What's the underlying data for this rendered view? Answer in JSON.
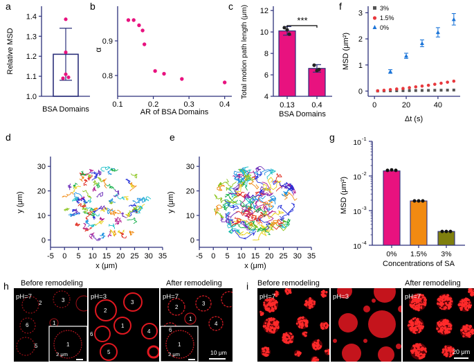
{
  "panel_letters": [
    "a",
    "b",
    "c",
    "d",
    "e",
    "f",
    "g",
    "h",
    "i"
  ],
  "colors": {
    "pink": "#e8127f",
    "axis": "#2b2f7a",
    "orange": "#f18a12",
    "olive": "#7f7f0e",
    "black": "#000000",
    "gray": "#555555",
    "red": "#e8383d",
    "blue": "#1c75d8"
  },
  "chart_data": [
    {
      "id": "a",
      "type": "bar",
      "categories": [
        "BSA Domains"
      ],
      "values": [
        1.21
      ],
      "error": [
        [
          1.08,
          1.34
        ]
      ],
      "points": [
        1.385,
        1.22,
        1.11,
        1.095,
        1.09
      ],
      "title": "",
      "xlabel": "BSA Domains",
      "ylabel": "Relative MSD",
      "ylim": [
        1.0,
        1.45
      ],
      "yticks": [
        "1.0",
        "1.1",
        "1.2",
        "1.3",
        "1.4"
      ]
    },
    {
      "id": "b",
      "type": "scatter",
      "x": [
        0.13,
        0.145,
        0.16,
        0.17,
        0.175,
        0.205,
        0.23,
        0.28,
        0.4
      ],
      "y": [
        0.96,
        0.96,
        0.945,
        0.93,
        0.89,
        0.813,
        0.805,
        0.79,
        0.78
      ],
      "title": "",
      "xlabel": "AR of BSA Domains",
      "ylabel": "α",
      "xlim": [
        0.1,
        0.42
      ],
      "ylim": [
        0.74,
        1.0
      ],
      "xticks": [
        "0.1",
        "0.2",
        "0.3",
        "0.4"
      ],
      "yticks": [
        "0.8",
        "0.9"
      ]
    },
    {
      "id": "c",
      "type": "bar",
      "categories": [
        "0.13",
        "0.4"
      ],
      "values": [
        10.1,
        6.6
      ],
      "error": [
        [
          9.7,
          10.5
        ],
        [
          6.25,
          6.95
        ]
      ],
      "points": [
        [
          10.4,
          9.8,
          10.2
        ],
        [
          6.9,
          6.5,
          6.4
        ]
      ],
      "significance": "***",
      "title": "",
      "xlabel": "BSA Domains",
      "ylabel": "Total motion path length (μm)",
      "ylim": [
        4,
        12.4
      ],
      "yticks": [
        "4",
        "6",
        "8",
        "10",
        "12"
      ]
    },
    {
      "id": "f",
      "type": "scatter",
      "series": [
        {
          "name": "3%",
          "x": [
            2,
            6,
            10,
            14,
            18,
            22,
            26,
            30,
            34,
            38,
            42,
            46,
            50
          ],
          "y": [
            0.003,
            0.006,
            0.009,
            0.012,
            0.015,
            0.018,
            0.021,
            0.024,
            0.027,
            0.03,
            0.033,
            0.036,
            0.04
          ]
        },
        {
          "name": "1.5%",
          "x": [
            2,
            6,
            10,
            14,
            18,
            22,
            26,
            30,
            34,
            38,
            42,
            46,
            50
          ],
          "y": [
            0.01,
            0.03,
            0.055,
            0.08,
            0.1,
            0.13,
            0.16,
            0.19,
            0.22,
            0.26,
            0.3,
            0.34,
            0.38
          ]
        },
        {
          "name": "0%",
          "x": [
            10,
            20,
            30,
            40,
            50
          ],
          "y": [
            0.75,
            1.35,
            1.83,
            2.25,
            2.75
          ],
          "err": [
            0.07,
            0.1,
            0.13,
            0.18,
            0.22
          ]
        }
      ],
      "title": "",
      "xlabel": "Δt (s)",
      "ylabel": "MSD (μm²)",
      "xlim": [
        -4,
        54
      ],
      "ylim": [
        -0.2,
        3.25
      ],
      "xticks": [
        "0",
        "20",
        "40"
      ],
      "yticks": [
        "0",
        "1",
        "2",
        "3"
      ]
    },
    {
      "id": "d",
      "type": "scatter",
      "title": "",
      "xlabel": "x (μm)",
      "ylabel": "y (μm)",
      "xlim": [
        -5,
        35
      ],
      "ylim": [
        -3,
        34
      ],
      "center": [
        15,
        15
      ],
      "radius": 16,
      "xticks": [
        "-5",
        "0",
        "5",
        "10",
        "15",
        "20",
        "25",
        "30",
        "35"
      ],
      "yticks": [
        "0",
        "10",
        "20",
        "30"
      ]
    },
    {
      "id": "e",
      "type": "scatter",
      "title": "",
      "xlabel": "x (μm)",
      "ylabel": "y (μm)",
      "xlim": [
        -5,
        35
      ],
      "ylim": [
        -3,
        34
      ],
      "center": [
        15,
        15
      ],
      "radius": 15,
      "xticks": [
        "-5",
        "0",
        "5",
        "10",
        "15",
        "20",
        "25",
        "30",
        "35"
      ],
      "yticks": [
        "0",
        "10",
        "20",
        "30"
      ]
    },
    {
      "id": "g",
      "type": "bar",
      "categories": [
        "0%",
        "1.5%",
        "3%"
      ],
      "values": [
        0.014,
        0.0019,
        0.00025
      ],
      "points": [
        [
          0.0145,
          0.015,
          0.0145
        ],
        [
          0.0019,
          0.0019,
          0.0019
        ],
        [
          0.00025,
          0.00025,
          0.00025
        ]
      ],
      "title": "",
      "xlabel": "Concentrations of SA",
      "ylabel": "MSD (μm²)",
      "ylim_log10": [
        -4,
        -1
      ],
      "yscale": "log",
      "ytick_labels": [
        "10",
        "10",
        "10",
        "10"
      ],
      "ytick_exps": [
        "-4",
        "-3",
        "-2",
        "-1"
      ]
    }
  ],
  "panel_h": {
    "title_left": "Before remodeling",
    "title_right": "After remodeling",
    "ph": [
      "pH=7",
      "pH=3",
      "pH=7"
    ],
    "labels": [
      "1",
      "2",
      "3",
      "4",
      "5",
      "6"
    ],
    "scale_inset": "2 μm",
    "scale_main": "10 μm"
  },
  "panel_i": {
    "title_left": "Before remodeling",
    "title_right": "After remodeling",
    "ph": [
      "pH=7",
      "pH=3",
      "pH=7"
    ],
    "scale_main": "20 μm"
  }
}
